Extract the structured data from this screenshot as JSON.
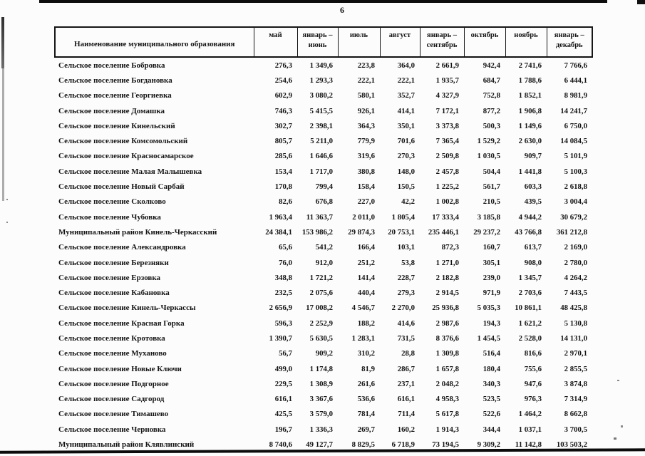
{
  "colors": {
    "ink": "#141414",
    "paper": "#fcfcfc"
  },
  "page": {
    "number": "6"
  },
  "table": {
    "name_header": "Наименование муниципального образования",
    "columns": [
      "май",
      "январь –\nиюнь",
      "июль",
      "август",
      "январь –\nсентябрь",
      "октябрь",
      "ноябрь",
      "январь –\nдекабрь"
    ],
    "rows": [
      {
        "name": "Сельское поселение Бобровка",
        "values": [
          "276,3",
          "1 349,6",
          "223,8",
          "364,0",
          "2 661,9",
          "942,4",
          "2 741,6",
          "7 766,6"
        ]
      },
      {
        "name": "Сельское поселение Богдановка",
        "values": [
          "254,6",
          "1 293,3",
          "222,1",
          "222,1",
          "1 935,7",
          "684,7",
          "1 788,6",
          "6 444,1"
        ]
      },
      {
        "name": "Сельское поселение Георгиевка",
        "values": [
          "602,9",
          "3 080,2",
          "580,1",
          "352,7",
          "4 327,9",
          "752,8",
          "1 852,1",
          "8 981,9"
        ]
      },
      {
        "name": "Сельское поселение Домашка",
        "values": [
          "746,3",
          "5 415,5",
          "926,1",
          "414,1",
          "7 172,1",
          "877,2",
          "1 906,8",
          "14 241,7"
        ]
      },
      {
        "name": "Сельское поселение Кинельский",
        "values": [
          "302,7",
          "2 398,1",
          "364,3",
          "350,1",
          "3 373,8",
          "500,3",
          "1 149,6",
          "6 750,0"
        ]
      },
      {
        "name": "Сельское поселение Комсомольский",
        "values": [
          "805,7",
          "5 211,0",
          "779,9",
          "701,6",
          "7 365,4",
          "1 529,2",
          "2 630,0",
          "14 084,5"
        ]
      },
      {
        "name": "Сельское поселение Красносамарское",
        "values": [
          "285,6",
          "1 646,6",
          "319,6",
          "270,3",
          "2 509,8",
          "1 030,5",
          "909,7",
          "5 101,9"
        ]
      },
      {
        "name": "Сельское поселение Малая Малышевка",
        "values": [
          "153,4",
          "1 717,0",
          "380,8",
          "148,0",
          "2 457,8",
          "504,4",
          "1 441,8",
          "5 100,3"
        ]
      },
      {
        "name": "Сельское поселение Новый Сарбай",
        "values": [
          "170,8",
          "799,4",
          "158,4",
          "150,5",
          "1 225,2",
          "561,7",
          "603,3",
          "2 618,8"
        ]
      },
      {
        "name": "Сельское поселение Сколково",
        "values": [
          "82,6",
          "676,8",
          "227,0",
          "42,2",
          "1 002,8",
          "210,5",
          "439,5",
          "3 004,4"
        ]
      },
      {
        "name": "Сельское поселение Чубовка",
        "values": [
          "1 963,4",
          "11 363,7",
          "2 011,0",
          "1 805,4",
          "17 333,4",
          "3 185,8",
          "4 944,2",
          "30 679,2"
        ]
      },
      {
        "name": "Муниципальный район Кинель-Черкасский",
        "values": [
          "24 384,1",
          "153 986,2",
          "29 874,3",
          "20 753,1",
          "235 446,1",
          "29 237,2",
          "43 766,8",
          "361 212,8"
        ]
      },
      {
        "name": "Сельское поселение Александровка",
        "values": [
          "65,6",
          "541,2",
          "166,4",
          "103,1",
          "872,3",
          "160,7",
          "613,7",
          "2 169,0"
        ]
      },
      {
        "name": "Сельское поселение Березняки",
        "values": [
          "76,0",
          "912,0",
          "251,2",
          "53,8",
          "1 271,0",
          "305,1",
          "908,0",
          "2 780,0"
        ]
      },
      {
        "name": "Сельское поселение Ерзовка",
        "values": [
          "348,8",
          "1 721,2",
          "141,4",
          "228,7",
          "2 182,8",
          "239,0",
          "1 345,7",
          "4 264,2"
        ]
      },
      {
        "name": "Сельское поселение Кабановка",
        "values": [
          "232,5",
          "2 075,6",
          "440,4",
          "279,3",
          "2 914,5",
          "971,9",
          "2 703,6",
          "7 443,5"
        ]
      },
      {
        "name": "Сельское поселение Кинель-Черкассы",
        "values": [
          "2 656,9",
          "17 008,2",
          "4 546,7",
          "2 270,0",
          "25 936,8",
          "5 035,3",
          "10 861,1",
          "48 425,8"
        ]
      },
      {
        "name": "Сельское поселение Красная Горка",
        "values": [
          "596,3",
          "2 252,9",
          "188,2",
          "414,6",
          "2 987,6",
          "194,3",
          "1 621,2",
          "5 130,8"
        ]
      },
      {
        "name": "Сельское поселение Кротовка",
        "values": [
          "1 390,7",
          "5 630,5",
          "1 283,1",
          "731,5",
          "8 376,6",
          "1 454,5",
          "2 528,0",
          "14 131,0"
        ]
      },
      {
        "name": "Сельское поселение Муханово",
        "values": [
          "56,7",
          "909,2",
          "310,2",
          "28,8",
          "1 309,8",
          "516,4",
          "816,6",
          "2 970,1"
        ]
      },
      {
        "name": "Сельское поселение Новые Ключи",
        "values": [
          "499,0",
          "1 174,8",
          "81,9",
          "286,7",
          "1 657,8",
          "180,4",
          "755,6",
          "2 855,5"
        ]
      },
      {
        "name": "Сельское поселение Подгорное",
        "values": [
          "229,5",
          "1 308,9",
          "261,6",
          "237,1",
          "2 048,2",
          "340,3",
          "947,6",
          "3 874,8"
        ]
      },
      {
        "name": "Сельское поселение Садгород",
        "values": [
          "616,1",
          "3 367,6",
          "536,6",
          "616,1",
          "4 958,3",
          "523,5",
          "976,3",
          "7 314,9"
        ]
      },
      {
        "name": "Сельское поселение Тимашево",
        "values": [
          "425,5",
          "3 579,0",
          "781,4",
          "711,4",
          "5 617,8",
          "522,6",
          "1 464,2",
          "8 662,8"
        ]
      },
      {
        "name": "Сельское поселение Черновка",
        "values": [
          "196,7",
          "1 336,3",
          "269,7",
          "160,2",
          "1 914,3",
          "344,4",
          "1 037,1",
          "3 700,5"
        ]
      },
      {
        "name": "Муниципальный район Клявлинский",
        "values": [
          "8 740,6",
          "49 127,7",
          "8 829,5",
          "6 718,9",
          "73 194,5",
          "9 309,2",
          "11 142,8",
          "103 503,2"
        ]
      }
    ]
  }
}
